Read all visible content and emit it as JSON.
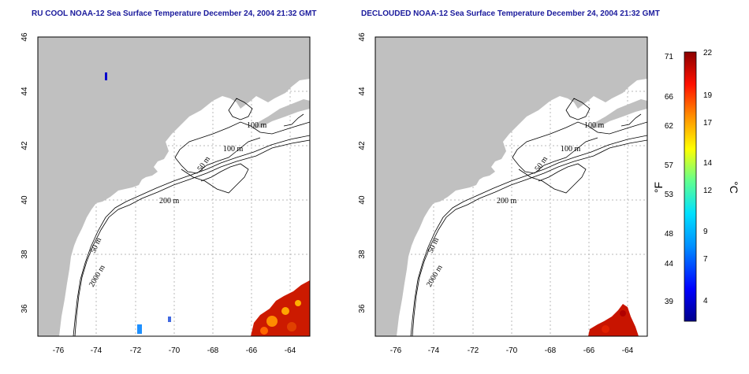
{
  "panels": [
    {
      "title": "RU COOL NOAA-12 Sea Surface Temperature December 24, 2004 21:32 GMT",
      "x_ticks": [
        "-76",
        "-74",
        "-72",
        "-70",
        "-68",
        "-66",
        "-64"
      ],
      "y_ticks": [
        "36",
        "38",
        "40",
        "42",
        "44",
        "46"
      ],
      "contour_labels": [
        "100 m",
        "100 m",
        "50 m",
        "200 m",
        "50 m",
        "2000 m"
      ]
    },
    {
      "title": "DECLOUDED NOAA-12 Sea Surface Temperature December 24, 2004 21:32 GMT",
      "x_ticks": [
        "-76",
        "-74",
        "-72",
        "-70",
        "-68",
        "-66",
        "-64"
      ],
      "y_ticks": [
        "36",
        "38",
        "40",
        "42",
        "44",
        "46"
      ],
      "contour_labels": [
        "100 m",
        "100 m",
        "50 m",
        "200 m",
        "50 m",
        "2000 m"
      ]
    }
  ],
  "colorbar": {
    "fahrenheit_label": "°F",
    "celsius_label": "°C",
    "fahrenheit_ticks": [
      "71",
      "66",
      "62",
      "57",
      "53",
      "48",
      "44",
      "39"
    ],
    "celsius_ticks": [
      "22",
      "19",
      "17",
      "14",
      "12",
      "9",
      "7",
      "4"
    ],
    "colors": [
      "#00008b",
      "#0000ff",
      "#0080ff",
      "#00ffff",
      "#80ff80",
      "#ffff00",
      "#ff8000",
      "#ff0000",
      "#8b0000"
    ]
  }
}
